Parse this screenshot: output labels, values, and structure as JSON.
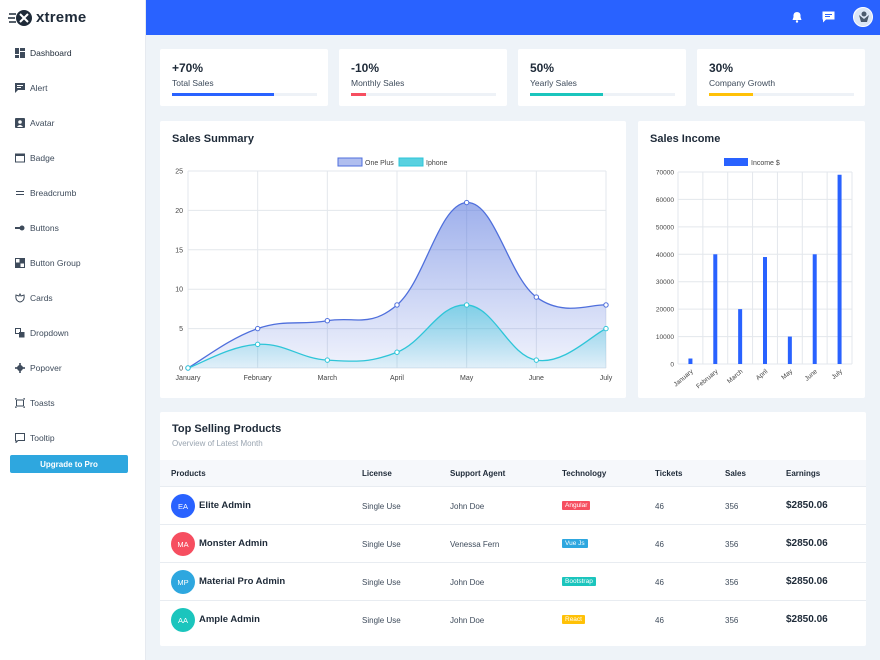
{
  "app": {
    "name": "xtreme"
  },
  "sidebar": {
    "items": [
      {
        "label": "Dashboard",
        "icon": "dashboard-icon"
      },
      {
        "label": "Alert",
        "icon": "alert-icon"
      },
      {
        "label": "Avatar",
        "icon": "avatar-icon"
      },
      {
        "label": "Badge",
        "icon": "badge-icon"
      },
      {
        "label": "Breadcrumb",
        "icon": "breadcrumb-icon"
      },
      {
        "label": "Buttons",
        "icon": "buttons-icon"
      },
      {
        "label": "Button Group",
        "icon": "button-group-icon"
      },
      {
        "label": "Cards",
        "icon": "cards-icon"
      },
      {
        "label": "Dropdown",
        "icon": "dropdown-icon"
      },
      {
        "label": "Popover",
        "icon": "popover-icon"
      },
      {
        "label": "Toasts",
        "icon": "toasts-icon"
      },
      {
        "label": "Tooltip",
        "icon": "tooltip-icon"
      }
    ],
    "upgrade_label": "Upgrade to Pro"
  },
  "topbar": {
    "icons": [
      "bell-icon",
      "chat-icon",
      "user-avatar"
    ]
  },
  "colors": {
    "topbar": "#2962ff",
    "blue": "#2962ff",
    "red": "#f64e60",
    "teal": "#1bc5bd",
    "yellow": "#ffc107",
    "cyan": "#2ea7df"
  },
  "stats": [
    {
      "value": "+70%",
      "label": "Total Sales",
      "progress": 0.7,
      "color": "#2962ff"
    },
    {
      "value": "-10%",
      "label": "Monthly Sales",
      "progress": 0.1,
      "color": "#f64e60"
    },
    {
      "value": "50%",
      "label": "Yearly Sales",
      "progress": 0.5,
      "color": "#1bc5bd"
    },
    {
      "value": "30%",
      "label": "Company Growth",
      "progress": 0.3,
      "color": "#ffc107"
    }
  ],
  "sales_summary": {
    "title": "Sales Summary"
  },
  "sales_income": {
    "title": "Sales Income"
  },
  "chart_data": [
    {
      "type": "area",
      "title": "Sales Summary",
      "categories": [
        "January",
        "February",
        "March",
        "April",
        "May",
        "June",
        "July"
      ],
      "series": [
        {
          "name": "One Plus",
          "values": [
            0,
            5,
            6,
            8,
            21,
            9,
            8
          ],
          "color": "#4f6fdc"
        },
        {
          "name": "Iphone",
          "values": [
            0,
            3,
            1,
            2,
            8,
            1,
            5
          ],
          "color": "#2ec5d8"
        }
      ],
      "ylim": [
        0,
        25
      ],
      "yticks": [
        0,
        5,
        10,
        15,
        20,
        25
      ],
      "grid": true,
      "legend": "top-center"
    },
    {
      "type": "bar",
      "title": "Sales Income",
      "categories": [
        "January",
        "February",
        "March",
        "April",
        "May",
        "June",
        "July"
      ],
      "series": [
        {
          "name": "Income $",
          "values": [
            2000,
            40000,
            20000,
            39000,
            10000,
            40000,
            69000
          ],
          "color": "#2962ff"
        }
      ],
      "ylim": [
        0,
        70000
      ],
      "yticks": [
        0,
        10000,
        20000,
        30000,
        40000,
        50000,
        60000,
        70000
      ],
      "grid": true,
      "legend": "top-center"
    }
  ],
  "top_products": {
    "title": "Top Selling Products",
    "subtitle": "Overview of Latest Month",
    "columns": [
      "Products",
      "License",
      "Support Agent",
      "Technology",
      "Tickets",
      "Sales",
      "Earnings"
    ],
    "rows": [
      {
        "initials": "EA",
        "avatar_color": "#2962ff",
        "name": "Elite Admin",
        "license": "Single Use",
        "agent": "John Doe",
        "tech": "Angular",
        "tech_color": "#f64e60",
        "tickets": "46",
        "sales": "356",
        "earnings": "$2850.06"
      },
      {
        "initials": "MA",
        "avatar_color": "#f64e60",
        "name": "Monster Admin",
        "license": "Single Use",
        "agent": "Venessa Fern",
        "tech": "Vue Js",
        "tech_color": "#2ea7df",
        "tickets": "46",
        "sales": "356",
        "earnings": "$2850.06"
      },
      {
        "initials": "MP",
        "avatar_color": "#2ea7df",
        "name": "Material Pro Admin",
        "license": "Single Use",
        "agent": "John Doe",
        "tech": "Bootstrap",
        "tech_color": "#1bc5bd",
        "tickets": "46",
        "sales": "356",
        "earnings": "$2850.06"
      },
      {
        "initials": "AA",
        "avatar_color": "#1bc5bd",
        "name": "Ample Admin",
        "license": "Single Use",
        "agent": "John Doe",
        "tech": "React",
        "tech_color": "#ffc107",
        "tickets": "46",
        "sales": "356",
        "earnings": "$2850.06"
      }
    ]
  }
}
